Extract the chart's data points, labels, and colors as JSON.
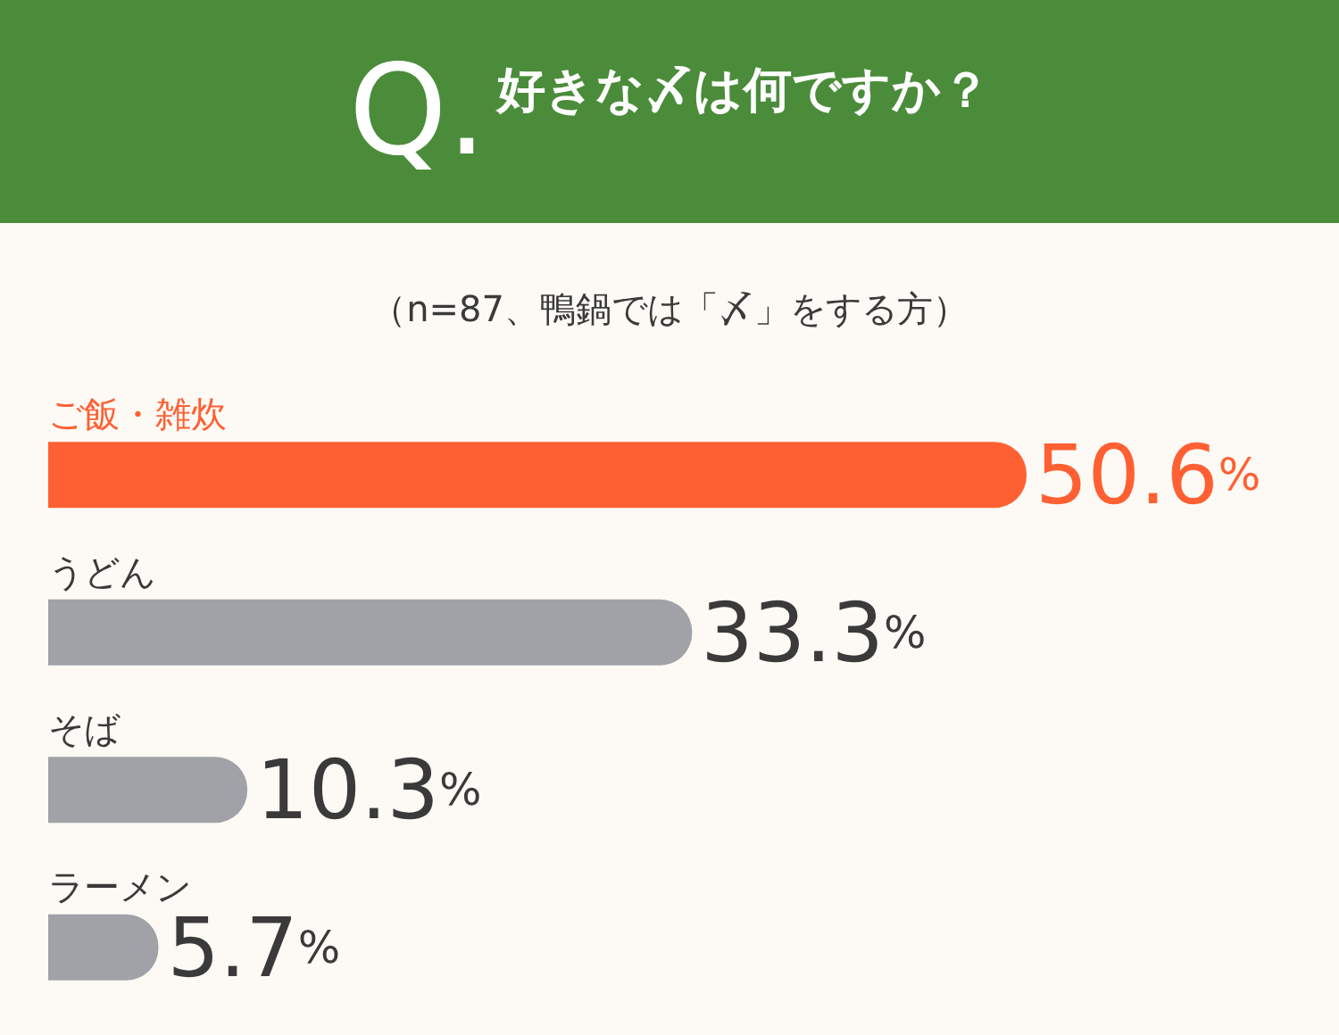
{
  "chart_data": {
    "type": "bar",
    "orientation": "horizontal",
    "title": "Q.好きな〆は何ですか？",
    "subtitle": "（n=87、鴨鍋では「〆」をする方）",
    "categories": [
      "ご飯・雑炊",
      "うどん",
      "そば",
      "ラーメン"
    ],
    "values": [
      50.6,
      33.3,
      10.3,
      5.7
    ],
    "colors": [
      "#ff6033",
      "#a0a2a7",
      "#a0a2a7",
      "#a0a2a7"
    ],
    "value_labels": [
      "50.6%",
      "33.3%",
      "10.3%",
      "5.7%"
    ]
  }
}
